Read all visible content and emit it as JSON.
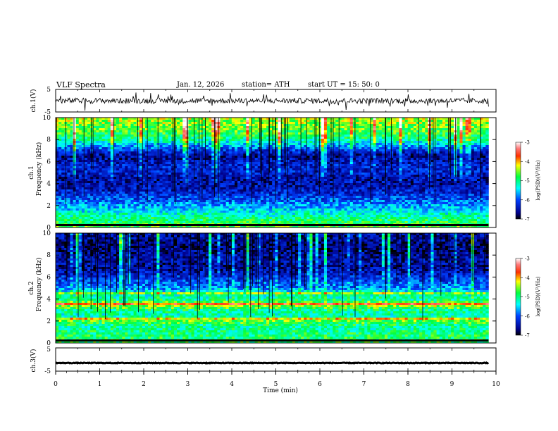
{
  "header": {
    "title": "VLF  Spectra",
    "date": "Jan.  12, 2026",
    "station": "station= ATH",
    "start": "start  UT  =    15: 50: 0"
  },
  "chart_data": {
    "type": "heatmap",
    "x_axis": {
      "label": "Time  (min)",
      "range": [
        0,
        10
      ],
      "ticks": [
        "0",
        "1",
        "2",
        "3",
        "4",
        "5",
        "6",
        "7",
        "8",
        "9",
        "10"
      ],
      "data_end": 9.83
    },
    "panels": [
      {
        "name": "ch.1 waveform",
        "type": "line",
        "ylabel": "ch.1(V)",
        "ylim": [
          -5,
          5
        ],
        "yticks": [
          "5",
          "-5"
        ],
        "baseline": 0,
        "amplitude": 1.2
      },
      {
        "name": "ch.1 spectrogram",
        "type": "heatmap",
        "ylabel_line1": "ch.1",
        "ylabel_line2": "Frequency  (kHz)",
        "ylim": [
          0,
          10
        ],
        "yticks": [
          "0",
          "2",
          "4",
          "6",
          "8",
          "10"
        ],
        "colorbar": {
          "label": "log(PSD)(V²/Hz)",
          "range": [
            -7,
            -3
          ],
          "ticks": [
            "-3",
            "-4",
            "-5",
            "-6",
            "-7"
          ]
        },
        "profile_khz": [
          0,
          0.5,
          1,
          1.5,
          2,
          2.5,
          3,
          3.5,
          4,
          4.5,
          5,
          5.5,
          6,
          6.5,
          7,
          7.5,
          8,
          8.5,
          9,
          9.5,
          10
        ],
        "profile_psd": [
          -4.6,
          -4.9,
          -5.1,
          -5.4,
          -5.7,
          -6.0,
          -6.2,
          -6.4,
          -6.5,
          -6.5,
          -6.3,
          -6.3,
          -6.4,
          -6.6,
          -6.2,
          -5.6,
          -5.1,
          -4.8,
          -4.6,
          -4.5,
          -4.4
        ]
      },
      {
        "name": "ch.2 spectrogram",
        "type": "heatmap",
        "ylabel_line1": "ch.2",
        "ylabel_line2": "Frequency  (kHz)",
        "ylim": [
          0,
          10
        ],
        "yticks": [
          "0",
          "2",
          "4",
          "6",
          "8",
          "10"
        ],
        "colorbar": {
          "label": "log(PSD)(V²/Hz)",
          "range": [
            -7,
            -3
          ],
          "ticks": [
            "-3",
            "-4",
            "-5",
            "-6",
            "-7"
          ]
        },
        "profile_khz": [
          0,
          0.5,
          1,
          1.5,
          2,
          2.5,
          3,
          3.5,
          4,
          4.5,
          5,
          5.5,
          6,
          6.5,
          7,
          7.5,
          8,
          8.5,
          9,
          9.5,
          10
        ],
        "profile_psd": [
          -4.8,
          -4.9,
          -5.0,
          -5.1,
          -4.6,
          -5.2,
          -5.0,
          -4.3,
          -5.1,
          -5.2,
          -5.8,
          -6.0,
          -6.2,
          -6.5,
          -6.6,
          -6.5,
          -6.6,
          -6.7,
          -6.7,
          -6.6,
          -6.5
        ],
        "bands_khz": [
          3.5,
          2.2,
          4.5
        ]
      },
      {
        "name": "ch.3 waveform",
        "type": "line",
        "ylabel": "ch.3(V)",
        "ylim": [
          -5,
          5
        ],
        "yticks": [
          "5",
          "-5"
        ],
        "baseline": -1.5,
        "amplitude": 0.15
      }
    ]
  }
}
